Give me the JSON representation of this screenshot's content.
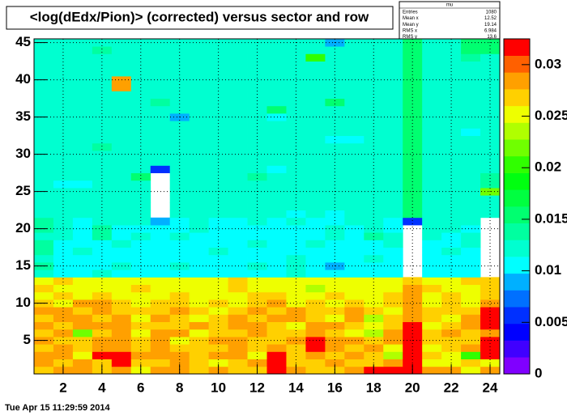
{
  "chart_data": {
    "type": "heatmap",
    "title": "<log(dEdx/Pion)> (corrected) versus sector and row",
    "footer": "Tue Apr 15 11:29:59 2014",
    "stats": {
      "title": "mu",
      "rows": [
        {
          "label": "Entries",
          "value": 1080
        },
        {
          "label": "Mean x",
          "value": 12.52
        },
        {
          "label": "Mean y",
          "value": 19.14
        },
        {
          "label": "RMS x",
          "value": 6.984
        },
        {
          "label": "RMS y",
          "value": 13.6
        }
      ]
    },
    "xlim": [
      0.5,
      24.5
    ],
    "ylim": [
      0.5,
      45.5
    ],
    "zlim": [
      0,
      0.0325
    ],
    "xticks": [
      2,
      4,
      6,
      8,
      10,
      12,
      14,
      16,
      18,
      20,
      22,
      24
    ],
    "yticks": [
      5,
      10,
      15,
      20,
      25,
      30,
      35,
      40,
      45
    ],
    "zticks": [
      0,
      0.005,
      0.01,
      0.015,
      0.02,
      0.025,
      0.03
    ],
    "grid": true,
    "palette": [
      "#8000ff",
      "#4000ff",
      "#0000ff",
      "#0030ff",
      "#0070ff",
      "#00b0ff",
      "#00ffff",
      "#00ffd0",
      "#00ffa0",
      "#00ff70",
      "#00ff40",
      "#00ff10",
      "#30ff00",
      "#70ff00",
      "#b0ff00",
      "#eeff00",
      "#ffd000",
      "#ffa000",
      "#ff6000",
      "#ff0000"
    ],
    "x": [
      1,
      2,
      3,
      4,
      5,
      6,
      7,
      8,
      9,
      10,
      11,
      12,
      13,
      14,
      15,
      16,
      17,
      18,
      19,
      20,
      21,
      22,
      23,
      24
    ],
    "y": [
      1,
      2,
      3,
      4,
      5,
      6,
      7,
      8,
      9,
      10,
      11,
      12,
      13,
      14,
      15,
      16,
      17,
      18,
      19,
      20,
      21,
      22,
      23,
      24,
      25,
      26,
      27,
      28,
      29,
      30,
      31,
      32,
      33,
      34,
      35,
      36,
      37,
      38,
      39,
      40,
      41,
      42,
      43,
      44,
      45
    ],
    "z": [
      [
        0.027,
        0.029,
        0.029,
        0.027,
        0.029,
        0.025,
        0.029,
        0.029,
        0.027,
        0.029,
        0.027,
        0.027,
        0.031,
        0.029,
        0.027,
        0.027,
        0.029,
        0.031,
        0.031,
        0.031,
        0.029,
        0.029,
        0.025,
        0.029
      ],
      [
        0.029,
        0.027,
        0.029,
        0.027,
        0.031,
        0.027,
        0.027,
        0.029,
        0.027,
        0.025,
        0.027,
        0.029,
        0.031,
        0.027,
        0.027,
        0.029,
        0.027,
        0.027,
        0.029,
        0.031,
        0.025,
        0.025,
        0.027,
        0.025
      ],
      [
        0.029,
        0.029,
        0.025,
        0.031,
        0.031,
        0.029,
        0.029,
        0.029,
        0.027,
        0.029,
        0.029,
        0.025,
        0.031,
        0.027,
        0.029,
        0.027,
        0.029,
        0.027,
        0.023,
        0.031,
        0.027,
        0.025,
        0.021,
        0.031
      ],
      [
        0.027,
        0.029,
        0.027,
        0.029,
        0.029,
        0.027,
        0.029,
        0.027,
        0.027,
        0.027,
        0.029,
        0.027,
        0.029,
        0.027,
        0.031,
        0.029,
        0.027,
        0.029,
        0.025,
        0.031,
        0.025,
        0.027,
        0.029,
        0.031
      ],
      [
        0.029,
        0.027,
        0.027,
        0.029,
        0.029,
        0.027,
        0.029,
        0.025,
        0.027,
        0.029,
        0.029,
        0.027,
        0.027,
        0.029,
        0.031,
        0.029,
        0.029,
        0.027,
        0.029,
        0.031,
        0.027,
        0.027,
        0.027,
        0.031
      ],
      [
        0.027,
        0.029,
        0.022,
        0.027,
        0.029,
        0.025,
        0.029,
        0.029,
        0.025,
        0.027,
        0.027,
        0.029,
        0.027,
        0.027,
        0.029,
        0.027,
        0.025,
        0.023,
        0.029,
        0.031,
        0.027,
        0.029,
        0.027,
        0.029
      ],
      [
        0.029,
        0.027,
        0.029,
        0.029,
        0.029,
        0.027,
        0.027,
        0.027,
        0.029,
        0.027,
        0.029,
        0.029,
        0.027,
        0.025,
        0.029,
        0.029,
        0.027,
        0.025,
        0.027,
        0.031,
        0.025,
        0.027,
        0.029,
        0.031
      ],
      [
        0.027,
        0.029,
        0.029,
        0.027,
        0.029,
        0.025,
        0.029,
        0.027,
        0.025,
        0.027,
        0.029,
        0.027,
        0.029,
        0.029,
        0.027,
        0.025,
        0.029,
        0.023,
        0.027,
        0.029,
        0.027,
        0.025,
        0.029,
        0.031
      ],
      [
        0.029,
        0.029,
        0.027,
        0.029,
        0.027,
        0.027,
        0.027,
        0.029,
        0.027,
        0.025,
        0.027,
        0.029,
        0.027,
        0.029,
        0.027,
        0.027,
        0.029,
        0.027,
        0.025,
        0.029,
        0.027,
        0.027,
        0.027,
        0.031
      ],
      [
        0.027,
        0.025,
        0.029,
        0.029,
        0.027,
        0.025,
        0.027,
        0.027,
        0.025,
        0.027,
        0.025,
        0.027,
        0.029,
        0.025,
        0.027,
        0.025,
        0.027,
        0.025,
        0.027,
        0.029,
        0.025,
        0.027,
        0.025,
        0.029
      ],
      [
        0.025,
        0.027,
        0.025,
        0.027,
        0.025,
        0.025,
        0.025,
        0.027,
        0.025,
        0.025,
        0.025,
        0.027,
        0.027,
        0.025,
        0.025,
        0.027,
        0.025,
        0.025,
        0.027,
        0.029,
        0.025,
        0.027,
        0.025,
        0.027
      ],
      [
        0.027,
        0.025,
        0.025,
        0.025,
        0.025,
        0.027,
        0.025,
        0.025,
        0.025,
        0.025,
        0.027,
        0.025,
        0.025,
        0.025,
        0.023,
        0.025,
        0.025,
        0.025,
        0.025,
        0.029,
        0.027,
        0.025,
        0.025,
        0.027
      ],
      [
        0.025,
        0.027,
        0.025,
        0.025,
        0.025,
        0.025,
        0.025,
        0.025,
        0.025,
        0.025,
        0.027,
        0.025,
        0.025,
        0.025,
        0.025,
        0.025,
        0.025,
        0.025,
        0.025,
        0.027,
        0.025,
        0.025,
        0.027,
        0.027
      ],
      [
        0.013,
        0.011,
        0.011,
        0.012,
        0.011,
        0.011,
        0.011,
        0.011,
        0.011,
        0.011,
        0.011,
        0.011,
        0.011,
        0.012,
        0.011,
        0.011,
        0.011,
        0.011,
        0.011,
        null,
        0.011,
        0.011,
        0.011,
        null
      ],
      [
        0.014,
        0.011,
        0.011,
        0.011,
        0.012,
        0.011,
        0.011,
        0.012,
        0.011,
        0.011,
        0.011,
        0.012,
        0.01,
        0.013,
        0.011,
        0.009,
        0.011,
        0.011,
        0.011,
        null,
        0.011,
        0.011,
        0.011,
        null
      ],
      [
        0.013,
        0.011,
        0.011,
        0.011,
        0.011,
        0.011,
        0.011,
        0.011,
        0.011,
        0.011,
        0.011,
        0.011,
        0.01,
        0.012,
        0.011,
        0.011,
        0.011,
        0.012,
        0.011,
        null,
        0.011,
        0.011,
        0.011,
        null
      ],
      [
        0.014,
        0.011,
        0.012,
        0.011,
        0.011,
        0.011,
        0.011,
        0.011,
        0.011,
        0.012,
        0.011,
        0.011,
        0.01,
        0.011,
        0.011,
        0.011,
        0.011,
        0.011,
        0.011,
        null,
        0.011,
        0.012,
        0.011,
        null
      ],
      [
        0.014,
        0.011,
        0.011,
        0.011,
        0.012,
        0.011,
        0.011,
        0.011,
        0.011,
        0.011,
        0.011,
        0.012,
        0.01,
        0.011,
        0.012,
        0.011,
        0.011,
        0.011,
        0.013,
        null,
        0.011,
        0.011,
        0.012,
        null
      ],
      [
        0.013,
        0.012,
        0.011,
        0.014,
        0.011,
        0.012,
        0.011,
        0.012,
        0.011,
        0.011,
        0.011,
        0.011,
        0.01,
        0.011,
        0.011,
        0.012,
        0.011,
        0.014,
        0.012,
        null,
        0.012,
        0.011,
        0.012,
        null
      ],
      [
        0.014,
        0.012,
        0.011,
        0.014,
        0.011,
        0.011,
        0.01,
        0.011,
        0.012,
        0.011,
        0.011,
        0.011,
        0.01,
        0.011,
        0.011,
        0.012,
        0.011,
        0.012,
        0.011,
        null,
        0.012,
        0.012,
        0.011,
        null
      ],
      [
        0.014,
        0.012,
        0.011,
        0.013,
        0.012,
        0.012,
        0.009,
        0.011,
        0.012,
        0.011,
        0.011,
        0.012,
        0.011,
        0.012,
        0.011,
        0.011,
        0.012,
        0.012,
        0.011,
        0.005,
        0.012,
        0.012,
        0.012,
        null
      ],
      [
        0.013,
        0.012,
        0.012,
        0.012,
        0.012,
        0.012,
        null,
        0.012,
        0.013,
        0.012,
        0.012,
        0.012,
        0.012,
        0.011,
        0.012,
        0.01,
        0.012,
        0.012,
        0.012,
        0.015,
        0.012,
        0.012,
        0.012,
        0.013
      ],
      [
        0.012,
        0.013,
        0.012,
        0.012,
        0.012,
        0.012,
        null,
        0.012,
        0.012,
        0.012,
        0.012,
        0.013,
        0.012,
        0.012,
        0.012,
        0.012,
        0.012,
        0.013,
        0.012,
        0.015,
        0.012,
        0.012,
        0.012,
        0.013
      ],
      [
        0.012,
        0.012,
        0.013,
        0.012,
        0.012,
        0.013,
        null,
        0.012,
        0.012,
        0.012,
        0.012,
        0.013,
        0.013,
        0.012,
        0.012,
        0.012,
        0.012,
        0.012,
        0.012,
        0.015,
        0.013,
        0.012,
        0.013,
        0.013
      ],
      [
        0.012,
        0.012,
        0.012,
        0.012,
        0.012,
        0.012,
        null,
        0.013,
        0.012,
        0.012,
        0.012,
        0.012,
        0.012,
        0.012,
        0.012,
        0.012,
        0.012,
        0.012,
        0.012,
        0.016,
        0.012,
        0.012,
        0.012,
        0.022
      ],
      [
        0.012,
        0.01,
        0.011,
        0.012,
        0.012,
        0.013,
        null,
        0.012,
        0.012,
        0.012,
        0.012,
        0.013,
        0.012,
        0.012,
        0.012,
        0.012,
        0.012,
        0.012,
        0.012,
        0.015,
        0.012,
        0.012,
        0.013,
        0.014
      ],
      [
        0.013,
        0.012,
        0.012,
        0.012,
        0.013,
        0.015,
        null,
        0.012,
        0.012,
        0.012,
        0.012,
        0.014,
        0.012,
        0.012,
        0.012,
        0.012,
        0.012,
        0.012,
        0.012,
        0.015,
        0.013,
        0.012,
        0.012,
        0.014
      ],
      [
        0.012,
        0.012,
        0.012,
        0.013,
        0.012,
        0.012,
        0.005,
        0.012,
        0.012,
        0.012,
        0.012,
        0.012,
        0.011,
        0.012,
        0.013,
        0.012,
        0.012,
        0.012,
        0.012,
        0.015,
        0.012,
        0.012,
        0.012,
        0.013
      ],
      [
        0.013,
        0.012,
        0.012,
        0.013,
        0.012,
        0.012,
        0.012,
        0.012,
        0.012,
        0.013,
        0.012,
        0.012,
        0.012,
        0.013,
        0.012,
        0.012,
        0.012,
        0.012,
        0.012,
        0.015,
        0.012,
        0.012,
        0.013,
        0.013
      ],
      [
        0.012,
        0.012,
        0.013,
        0.012,
        0.012,
        0.012,
        0.012,
        0.013,
        0.012,
        0.012,
        0.012,
        0.012,
        0.013,
        0.012,
        0.012,
        0.012,
        0.013,
        0.012,
        0.012,
        0.016,
        0.012,
        0.013,
        0.012,
        0.013
      ],
      [
        0.012,
        0.013,
        0.012,
        0.014,
        0.013,
        0.012,
        0.012,
        0.012,
        0.012,
        0.012,
        0.012,
        0.013,
        0.012,
        0.012,
        0.013,
        0.012,
        0.012,
        0.012,
        0.012,
        0.015,
        0.012,
        0.012,
        0.013,
        0.012
      ],
      [
        0.013,
        0.012,
        0.012,
        0.012,
        0.012,
        0.012,
        0.013,
        0.012,
        0.012,
        0.012,
        0.013,
        0.012,
        0.012,
        0.012,
        0.012,
        0.01,
        0.01,
        0.012,
        0.012,
        0.015,
        0.012,
        0.012,
        0.012,
        0.012
      ],
      [
        0.012,
        0.012,
        0.012,
        0.013,
        0.012,
        0.012,
        0.012,
        0.012,
        0.012,
        0.012,
        0.012,
        0.012,
        0.012,
        0.013,
        0.012,
        0.012,
        0.012,
        0.012,
        0.013,
        0.016,
        0.012,
        0.012,
        0.011,
        0.013
      ],
      [
        0.012,
        0.013,
        0.012,
        0.012,
        0.012,
        0.012,
        0.012,
        0.012,
        0.012,
        0.012,
        0.012,
        0.012,
        0.013,
        0.012,
        0.012,
        0.013,
        0.012,
        0.012,
        0.012,
        0.015,
        0.012,
        0.012,
        0.012,
        0.012
      ],
      [
        0.012,
        0.012,
        0.013,
        0.012,
        0.012,
        0.012,
        0.012,
        0.009,
        0.012,
        0.012,
        0.012,
        0.012,
        0.01,
        0.012,
        0.012,
        0.012,
        0.012,
        0.012,
        0.012,
        0.015,
        0.012,
        0.013,
        0.012,
        0.012
      ],
      [
        0.013,
        0.012,
        0.012,
        0.012,
        0.012,
        0.012,
        0.012,
        0.012,
        0.012,
        0.012,
        0.012,
        0.012,
        0.016,
        0.012,
        0.012,
        0.012,
        0.012,
        0.013,
        0.012,
        0.015,
        0.012,
        0.012,
        0.012,
        0.013
      ],
      [
        0.012,
        0.012,
        0.012,
        0.012,
        0.012,
        0.012,
        0.014,
        0.012,
        0.012,
        0.012,
        0.012,
        0.013,
        0.012,
        0.012,
        0.012,
        0.016,
        0.012,
        0.012,
        0.012,
        0.016,
        0.012,
        0.012,
        0.013,
        0.012
      ],
      [
        0.012,
        0.013,
        0.012,
        0.012,
        0.013,
        0.012,
        0.012,
        0.012,
        0.012,
        0.012,
        0.012,
        0.012,
        0.012,
        0.012,
        0.012,
        0.012,
        0.012,
        0.012,
        0.012,
        0.015,
        0.012,
        0.012,
        0.012,
        0.013
      ],
      [
        0.012,
        0.012,
        0.012,
        0.012,
        0.029,
        0.012,
        0.012,
        0.012,
        0.013,
        0.012,
        0.012,
        0.012,
        0.012,
        0.012,
        0.012,
        0.012,
        0.012,
        0.012,
        0.012,
        0.015,
        0.012,
        0.012,
        0.012,
        0.012
      ],
      [
        0.013,
        0.012,
        0.012,
        0.012,
        0.029,
        0.012,
        0.012,
        0.013,
        0.012,
        0.012,
        0.012,
        0.012,
        0.012,
        0.013,
        0.012,
        0.012,
        0.012,
        0.012,
        0.013,
        0.016,
        0.012,
        0.013,
        0.012,
        0.013
      ],
      [
        0.012,
        0.012,
        0.012,
        0.013,
        0.012,
        0.012,
        0.012,
        0.012,
        0.012,
        0.012,
        0.012,
        0.013,
        0.012,
        0.012,
        0.012,
        0.012,
        0.012,
        0.012,
        0.012,
        0.015,
        0.012,
        0.012,
        0.013,
        0.012
      ],
      [
        0.013,
        0.012,
        0.012,
        0.012,
        0.012,
        0.012,
        0.012,
        0.012,
        0.012,
        0.012,
        0.013,
        0.012,
        0.012,
        0.012,
        0.012,
        0.012,
        0.012,
        0.013,
        0.012,
        0.015,
        0.012,
        0.012,
        0.012,
        0.013
      ],
      [
        0.012,
        0.013,
        0.012,
        0.012,
        0.012,
        0.012,
        0.013,
        0.012,
        0.012,
        0.012,
        0.012,
        0.012,
        0.012,
        0.012,
        0.02,
        0.012,
        0.012,
        0.012,
        0.012,
        0.016,
        0.012,
        0.012,
        0.014,
        0.013
      ],
      [
        0.012,
        0.012,
        0.013,
        0.014,
        0.012,
        0.012,
        0.012,
        0.012,
        0.013,
        0.012,
        0.012,
        0.012,
        0.012,
        0.012,
        0.012,
        0.012,
        0.012,
        0.012,
        0.012,
        0.015,
        0.013,
        0.012,
        0.015,
        0.015
      ],
      [
        0.012,
        0.012,
        0.012,
        0.013,
        0.013,
        0.012,
        0.012,
        0.012,
        0.012,
        0.012,
        0.012,
        0.012,
        0.012,
        0.012,
        0.012,
        0.009,
        0.012,
        0.012,
        0.012,
        0.015,
        0.012,
        0.013,
        0.015,
        0.016
      ]
    ]
  }
}
